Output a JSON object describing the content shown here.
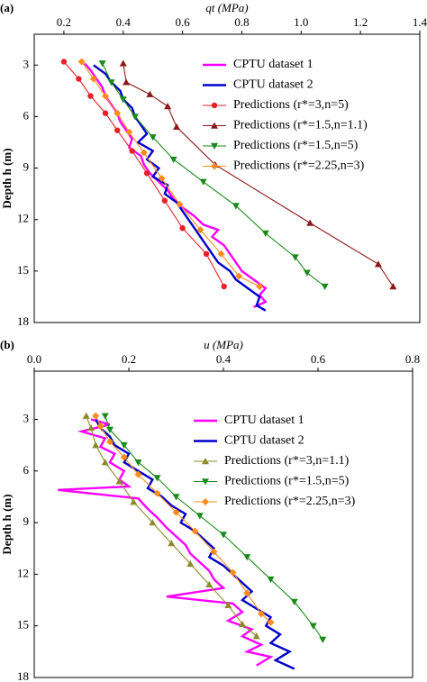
{
  "chart_data": [
    {
      "type": "line",
      "panel_label": "(a)",
      "x_label": "qt (MPa)",
      "y_label": "Depth h (m)",
      "xlim": [
        0.1,
        1.4
      ],
      "xticks": [
        0.2,
        0.4,
        0.6,
        0.8,
        {
          "value": 1,
          "label": "1.0"
        },
        1.2,
        1.4
      ],
      "ylim": [
        1.2,
        18
      ],
      "yticks": [
        3,
        6,
        9,
        12,
        15,
        18
      ],
      "y_inverted": true,
      "x_axis_position": "top",
      "legend": "upper right",
      "series": [
        {
          "name": "CPTU dataset 1",
          "color": "#ff00ff",
          "marker": "none",
          "x": [
            0.27,
            0.29,
            0.31,
            0.33,
            0.34,
            0.36,
            0.38,
            0.39,
            0.41,
            0.43,
            0.42,
            0.46,
            0.47,
            0.49,
            0.52,
            0.55,
            0.57,
            0.6,
            0.64,
            0.67,
            0.72,
            0.7,
            0.74,
            0.76,
            0.78,
            0.8,
            0.84,
            0.88,
            0.86,
            0.88,
            0.84
          ],
          "values": [
            2.9,
            3.3,
            3.8,
            4.3,
            4.8,
            5.3,
            5.8,
            6.3,
            6.8,
            7.3,
            7.8,
            8.3,
            8.8,
            9.3,
            9.8,
            10.3,
            10.8,
            11.3,
            11.8,
            12.3,
            12.6,
            13,
            13.5,
            14,
            14.5,
            15,
            15.5,
            16,
            16.4,
            16.8,
            17.1
          ]
        },
        {
          "name": "CPTU dataset 2",
          "color": "#0000cc",
          "marker": "none",
          "x": [
            0.3,
            0.34,
            0.36,
            0.39,
            0.4,
            0.43,
            0.44,
            0.46,
            0.48,
            0.45,
            0.5,
            0.48,
            0.52,
            0.5,
            0.55,
            0.54,
            0.58,
            0.6,
            0.62,
            0.64,
            0.66,
            0.68,
            0.7,
            0.72,
            0.76,
            0.78,
            0.82,
            0.86,
            0.85,
            0.88
          ],
          "values": [
            3,
            3.5,
            4,
            4.5,
            5,
            5.5,
            6,
            6.5,
            7,
            7.5,
            8,
            8.5,
            9,
            9.5,
            10,
            10.5,
            11,
            11.5,
            12,
            12.5,
            13,
            13.5,
            14,
            14.5,
            15,
            15.5,
            16,
            16.5,
            17,
            17.3
          ]
        },
        {
          "name": "Predictions (r*=3,n=5)",
          "color": "#e8202a",
          "marker": "circle",
          "x": [
            0.2,
            0.25,
            0.29,
            0.34,
            0.38,
            0.43,
            0.48,
            0.54,
            0.6,
            0.68,
            0.74
          ],
          "values": [
            2.8,
            3.8,
            4.8,
            5.8,
            6.8,
            8,
            9.3,
            10.9,
            12.5,
            14,
            15.9
          ]
        },
        {
          "name": "Predictions (r*=1.5,n=1.1)",
          "color": "#8b1a1a",
          "marker": "triangle-up",
          "x": [
            0.4,
            0.41,
            0.49,
            0.55,
            0.58,
            0.71,
            1.03,
            1.26,
            1.31
          ],
          "values": [
            2.9,
            4,
            4.7,
            5.4,
            6.6,
            8.8,
            12.2,
            14.6,
            15.9
          ]
        },
        {
          "name": "Predictions (r*=1.5,n=5)",
          "color": "#1a8a1a",
          "marker": "triangle-down",
          "x": [
            0.33,
            0.36,
            0.4,
            0.44,
            0.5,
            0.57,
            0.67,
            0.78,
            0.88,
            0.98,
            1.02,
            1.08
          ],
          "values": [
            2.9,
            4,
            5,
            6,
            7.2,
            8.5,
            9.8,
            11.2,
            12.8,
            14.2,
            15.1,
            15.9
          ]
        },
        {
          "name": "Predictions (r*=2.25,n=3)",
          "color": "#ff8c1a",
          "marker": "diamond",
          "x": [
            0.26,
            0.3,
            0.34,
            0.38,
            0.42,
            0.47,
            0.53,
            0.59,
            0.66,
            0.73,
            0.79,
            0.86
          ],
          "values": [
            2.8,
            3.8,
            4.8,
            5.8,
            6.9,
            8.1,
            9.6,
            11.1,
            12.6,
            14,
            15.3,
            15.9
          ]
        }
      ]
    },
    {
      "type": "line",
      "panel_label": "(b)",
      "x_label": "u (MPa)",
      "y_label": "Depth h (m)",
      "xlim": [
        0,
        0.8
      ],
      "xticks": [
        {
          "value": 0,
          "label": "0.0"
        },
        0.2,
        0.4,
        0.6,
        0.8
      ],
      "ylim": [
        0.2,
        18
      ],
      "yticks": [
        3,
        6,
        9,
        12,
        15,
        18
      ],
      "y_inverted": true,
      "x_axis_position": "top",
      "legend": "upper right",
      "series": [
        {
          "name": "CPTU dataset 1",
          "color": "#ff00ff",
          "marker": "none",
          "x": [
            0.12,
            0.16,
            0.1,
            0.15,
            0.14,
            0.17,
            0.16,
            0.19,
            0.18,
            0.2,
            0.05,
            0.22,
            0.24,
            0.26,
            0.28,
            0.3,
            0.32,
            0.33,
            0.35,
            0.37,
            0.38,
            0.4,
            0.28,
            0.42,
            0.44,
            0.41,
            0.46,
            0.44,
            0.48,
            0.45,
            0.5,
            0.47
          ],
          "values": [
            3,
            3.3,
            3.7,
            4.1,
            4.6,
            5,
            5.5,
            6,
            6.5,
            6.9,
            7.1,
            7.6,
            8.2,
            8.7,
            9.3,
            9.8,
            10.3,
            10.8,
            11.3,
            11.8,
            12.3,
            12.8,
            13.3,
            13.7,
            14.2,
            14.7,
            15.2,
            15.6,
            16.1,
            16.5,
            16.8,
            17.3
          ]
        },
        {
          "name": "CPTU dataset 2",
          "color": "#0000cc",
          "marker": "none",
          "x": [
            0.13,
            0.14,
            0.16,
            0.17,
            0.2,
            0.19,
            0.22,
            0.25,
            0.24,
            0.27,
            0.29,
            0.32,
            0.31,
            0.34,
            0.36,
            0.38,
            0.37,
            0.4,
            0.42,
            0.44,
            0.46,
            0.44,
            0.47,
            0.5,
            0.49,
            0.52,
            0.5,
            0.54,
            0.51,
            0.55
          ],
          "values": [
            3,
            3.5,
            4,
            4.5,
            5,
            5.5,
            6,
            6.5,
            7,
            7.5,
            8,
            8.5,
            9,
            9.5,
            10,
            10.5,
            11,
            11.5,
            12,
            12.5,
            13,
            13.5,
            14,
            14.5,
            15,
            15.5,
            16,
            16.5,
            17,
            17.5
          ]
        },
        {
          "name": "Predictions (r*=3,n=1.1)",
          "color": "#8b8b2a",
          "marker": "triangle-up",
          "x": [
            0.11,
            0.12,
            0.13,
            0.15,
            0.18,
            0.21,
            0.25,
            0.29,
            0.33,
            0.37,
            0.41,
            0.44,
            0.47
          ],
          "values": [
            2.8,
            3.5,
            4.5,
            5.5,
            6.6,
            7.8,
            9,
            10.2,
            11.4,
            12.6,
            13.8,
            14.9,
            15.6
          ]
        },
        {
          "name": "Predictions (r*=1.5,n=5)",
          "color": "#1a8a1a",
          "marker": "triangle-down",
          "x": [
            0.15,
            0.16,
            0.19,
            0.22,
            0.26,
            0.3,
            0.35,
            0.4,
            0.45,
            0.5,
            0.55,
            0.59,
            0.61
          ],
          "values": [
            2.8,
            3.6,
            4.5,
            5.5,
            6.4,
            7.5,
            8.6,
            9.7,
            11,
            12.3,
            13.6,
            15,
            15.8
          ]
        },
        {
          "name": "Predictions (r*=2.25,n=3)",
          "color": "#ff8c1a",
          "marker": "diamond",
          "x": [
            0.13,
            0.14,
            0.16,
            0.19,
            0.22,
            0.26,
            0.3,
            0.34,
            0.38,
            0.42,
            0.45,
            0.48,
            0.5
          ],
          "values": [
            2.8,
            3.4,
            4.3,
            5.2,
            6.2,
            7.3,
            8.4,
            9.5,
            10.7,
            11.9,
            13.1,
            14.3,
            14.8
          ]
        }
      ]
    }
  ]
}
